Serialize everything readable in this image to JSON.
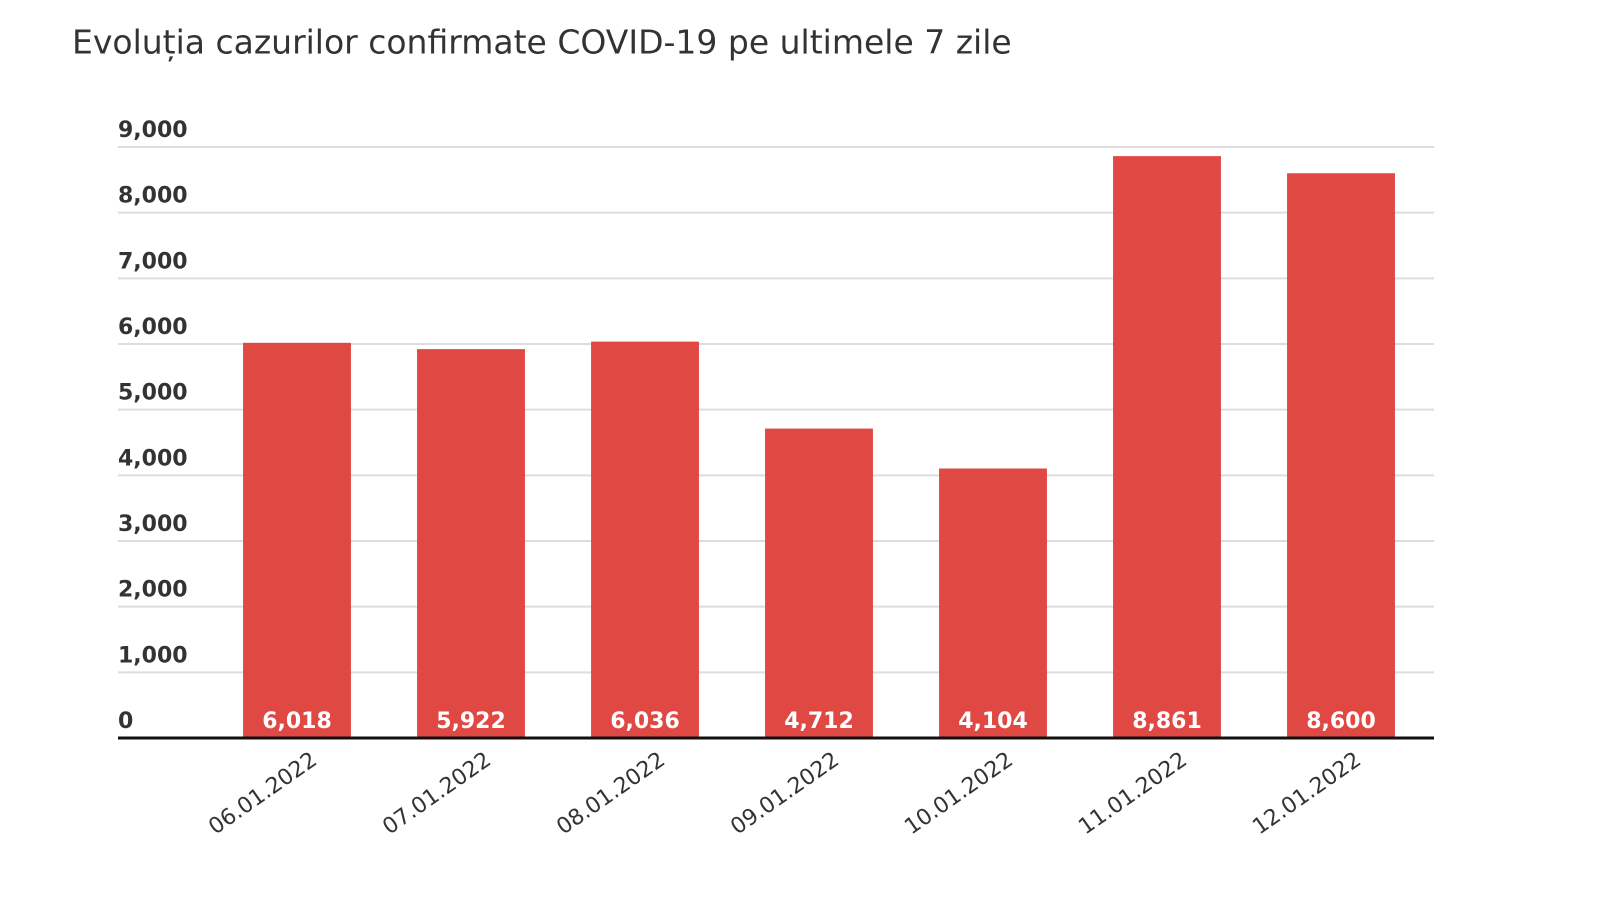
{
  "chart_data": {
    "type": "bar",
    "title": "Evoluția cazurilor confirmate COVID-19 pe ultimele 7 zile",
    "categories": [
      "06.01.2022",
      "07.01.2022",
      "08.01.2022",
      "09.01.2022",
      "10.01.2022",
      "11.01.2022",
      "12.01.2022"
    ],
    "values": [
      6018,
      5922,
      6036,
      4712,
      4104,
      8861,
      8600
    ],
    "value_labels": [
      "6,018",
      "5,922",
      "6,036",
      "4,712",
      "4,104",
      "8,861",
      "8,600"
    ],
    "color": "#e04844",
    "ylim": [
      0,
      9000
    ],
    "yticks": [
      0,
      {
        "value": 1000,
        "label": "1,000"
      },
      {
        "value": 2000,
        "label": "2,000"
      },
      {
        "value": 3000,
        "label": "3,000"
      },
      {
        "value": 4000,
        "label": "4,000"
      },
      {
        "value": 5000,
        "label": "5,000"
      },
      {
        "value": 6000,
        "label": "6,000"
      },
      {
        "value": 7000,
        "label": "7,000"
      },
      {
        "value": 8000,
        "label": "8,000"
      },
      {
        "value": 9000,
        "label": "9,000"
      }
    ],
    "grid": true
  }
}
